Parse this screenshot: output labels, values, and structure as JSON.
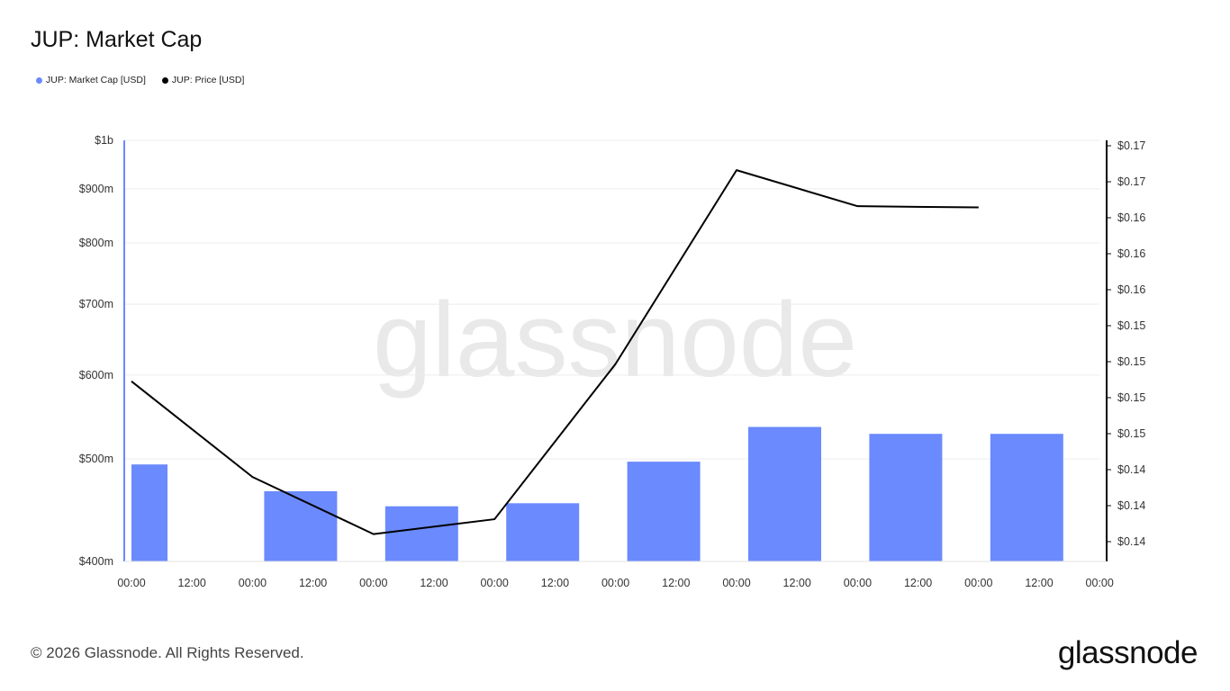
{
  "header": {
    "title": "JUP: Market Cap"
  },
  "legend": {
    "items": [
      {
        "label": "JUP: Market Cap [USD]",
        "color": "#6b8afd"
      },
      {
        "label": "JUP: Price [USD]",
        "color": "#000000"
      }
    ]
  },
  "watermark": "glassnode",
  "footer": {
    "copyright": "© 2026 Glassnode. All Rights Reserved.",
    "logo": "glassnode"
  },
  "chart_data": {
    "type": "bar",
    "title": "JUP: Market Cap",
    "x_ticks": [
      "00:00",
      "12:00",
      "00:00",
      "12:00",
      "00:00",
      "12:00",
      "00:00",
      "12:00",
      "00:00",
      "12:00",
      "00:00",
      "12:00",
      "00:00",
      "12:00",
      "00:00",
      "12:00",
      "00:00"
    ],
    "left_axis": {
      "scale": "log",
      "ylim": [
        400000000,
        1000000000
      ],
      "ticks": [
        {
          "value": 400000000,
          "label": "$400m"
        },
        {
          "value": 500000000,
          "label": "$500m"
        },
        {
          "value": 600000000,
          "label": "$600m"
        },
        {
          "value": 700000000,
          "label": "$700m"
        },
        {
          "value": 800000000,
          "label": "$800m"
        },
        {
          "value": 900000000,
          "label": "$900m"
        },
        {
          "value": 1000000000,
          "label": "$1b"
        }
      ]
    },
    "right_axis": {
      "ylim": [
        0.1375,
        0.1714
      ],
      "tick_labels": [
        "$0.14",
        "$0.14",
        "$0.14",
        "$0.15",
        "$0.15",
        "$0.15",
        "$0.15",
        "$0.16",
        "$0.16",
        "$0.16",
        "$0.17",
        "$0.17"
      ]
    },
    "series": [
      {
        "name": "JUP: Market Cap [USD]",
        "type": "bar",
        "color": "#6b8afd",
        "axis": "left",
        "x_index": [
          0,
          2,
          4,
          6,
          8,
          10,
          12,
          14
        ],
        "values": [
          494000000,
          466000000,
          451000000,
          454000000,
          497000000,
          536000000,
          528000000,
          528000000
        ]
      },
      {
        "name": "JUP: Price [USD]",
        "type": "line",
        "color": "#000000",
        "axis": "right",
        "x_index": [
          0,
          2,
          4,
          6,
          8,
          10,
          12,
          14
        ],
        "values": [
          0.152,
          0.1443,
          0.1397,
          0.1409,
          0.1534,
          0.169,
          0.1661,
          0.166
        ]
      }
    ],
    "grid": true,
    "legend_position": "top-left"
  }
}
